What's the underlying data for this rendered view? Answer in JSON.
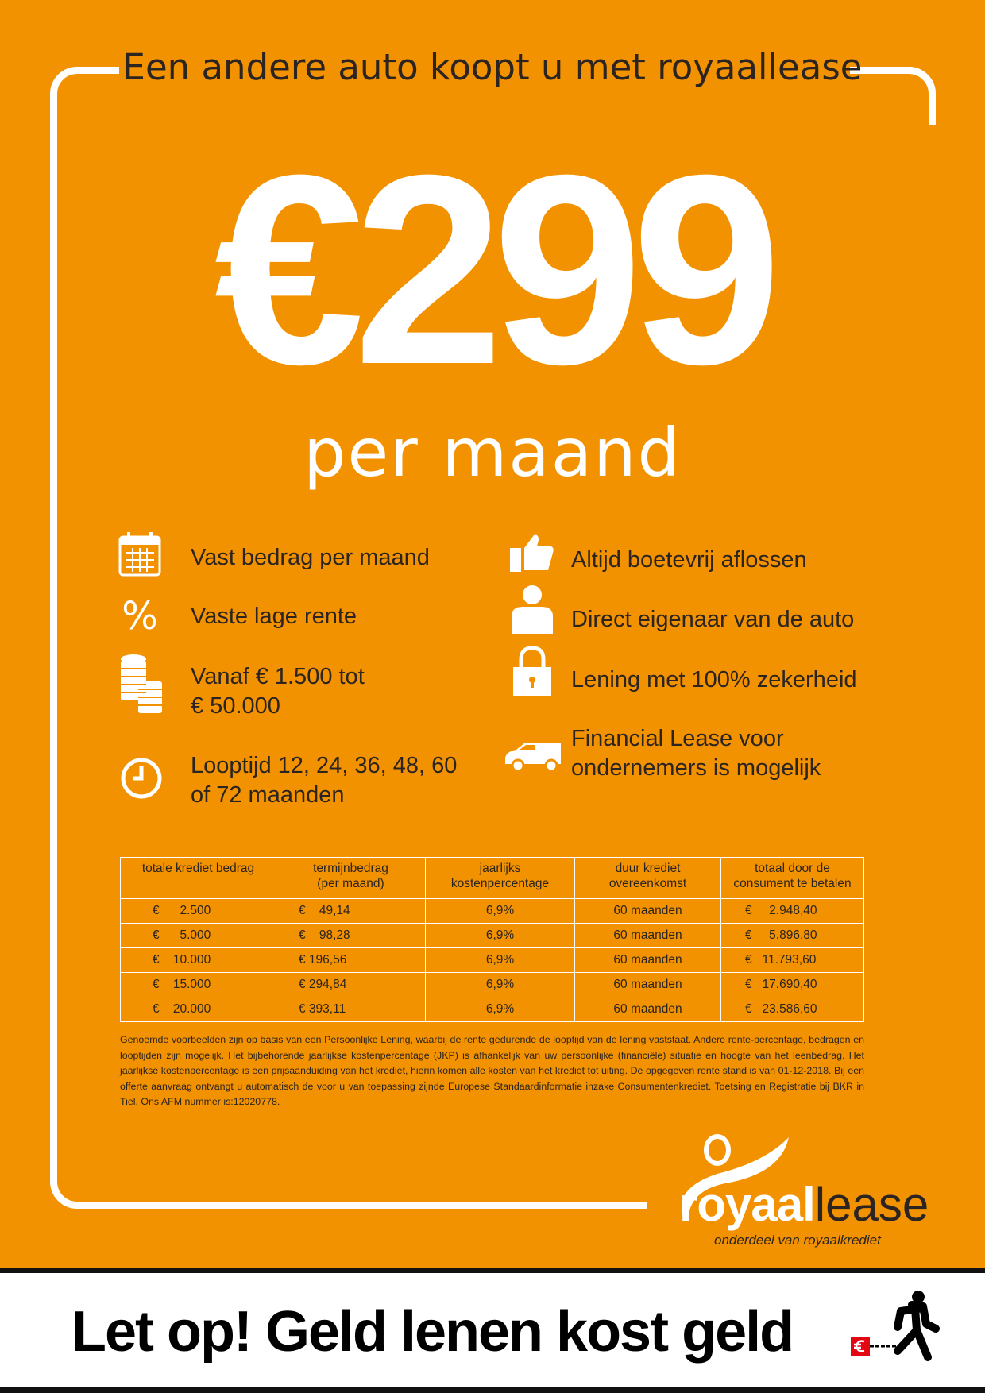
{
  "header": {
    "title": "Een andere auto koopt u met royaallease"
  },
  "hero": {
    "price": "€299",
    "period": "per maand"
  },
  "features_left": [
    {
      "icon": "calendar-icon",
      "text": "Vast bedrag per maand"
    },
    {
      "icon": "percent-icon",
      "text": "Vaste lage rente"
    },
    {
      "icon": "coins-icon",
      "text": "Vanaf € 1.500 tot\n€ 50.000"
    },
    {
      "icon": "clock-icon",
      "text": "Looptijd 12, 24, 36, 48, 60\nof 72 maanden"
    }
  ],
  "features_right": [
    {
      "icon": "thumbs-up-icon",
      "text": "Altijd boetevrij aflossen"
    },
    {
      "icon": "person-icon",
      "text": "Direct eigenaar van de auto"
    },
    {
      "icon": "lock-icon",
      "text": "Lening met 100% zekerheid"
    },
    {
      "icon": "van-icon",
      "text": "Financial Lease voor\nondernemers is mogelijk"
    }
  ],
  "table": {
    "headers": [
      "totale krediet bedrag",
      "termijnbedrag\n(per maand)",
      "jaarlijks\nkostenpercentage",
      "duur krediet\novereenkomst",
      "totaal door de\nconsument te betalen"
    ],
    "rows": [
      [
        "€      2.500",
        "€    49,14",
        "6,9%",
        "60 maanden",
        "€     2.948,40"
      ],
      [
        "€      5.000",
        "€    98,28",
        "6,9%",
        "60 maanden",
        "€     5.896,80"
      ],
      [
        "€    10.000",
        "€ 196,56",
        "6,9%",
        "60 maanden",
        "€   11.793,60"
      ],
      [
        "€    15.000",
        "€ 294,84",
        "6,9%",
        "60 maanden",
        "€   17.690,40"
      ],
      [
        "€    20.000",
        "€ 393,11",
        "6,9%",
        "60 maanden",
        "€   23.586,60"
      ]
    ]
  },
  "footnote": "Genoemde voorbeelden zijn op basis van een Persoonlijke Lening, waarbij de rente gedurende de looptijd van de lening vaststaat. Andere rente-percentage, bedragen en looptijden zijn mogelijk. Het bijbehorende jaarlijkse kostenpercentage (JKP) is afhankelijk van uw persoonlijke (financiële) situatie en hoogte van het leenbedrag. Het jaarlijkse kostenpercentage is een prijsaanduiding van het krediet, hierin komen alle kosten van het krediet tot uiting. De opgegeven rente stand is van 01-12-2018.  Bij een offerte aanvraag ontvangt u automatisch de voor u van toepassing zijnde Europese Standaardinformatie inzake Consumentenkrediet. Toetsing en Registratie bij BKR in Tiel. Ons AFM nummer is:12020778.",
  "logo": {
    "bold": "royaal",
    "light": "lease",
    "sub": "onderdeel van royaalkrediet"
  },
  "warning": {
    "text": "Let op! Geld lenen kost geld",
    "icon": "person-chained-to-euro-icon"
  },
  "colors": {
    "brand_orange": "#F39200",
    "text_dark": "#2b2420",
    "white": "#ffffff"
  }
}
